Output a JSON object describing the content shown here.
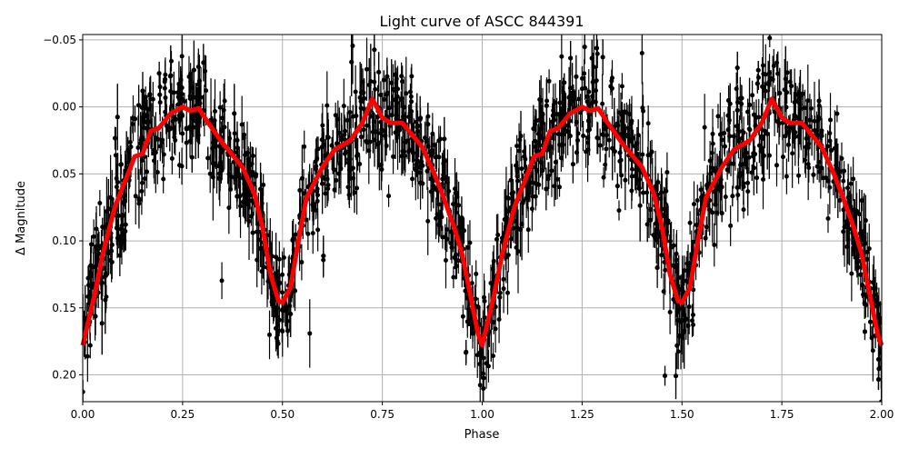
{
  "chart_data": {
    "type": "scatter",
    "title": "Light curve of ASCC 844391",
    "xlabel": "Phase",
    "ylabel": "Δ Magnitude",
    "xlim": [
      0,
      2
    ],
    "ylim": [
      0.22,
      -0.054
    ],
    "y_inverted": true,
    "grid": true,
    "xticks": [
      "0.00",
      "0.25",
      "0.50",
      "0.75",
      "1.00",
      "1.25",
      "1.50",
      "1.75",
      "2.00"
    ],
    "yticks": [
      "−0.05",
      "0.00",
      "0.05",
      "0.10",
      "0.15",
      "0.20"
    ],
    "colors": {
      "data": "#000000",
      "model": "#ff0000",
      "grid": "#b0b0b0"
    },
    "series": [
      {
        "kind": "errorbar-points",
        "description_visible": false
      },
      {
        "kind": "line",
        "x": [
          0,
          0.03,
          0.05,
          0.08,
          0.1,
          0.12,
          0.13,
          0.15,
          0.17,
          0.19,
          0.22,
          0.25,
          0.27,
          0.29,
          0.31,
          0.35,
          0.4,
          0.43,
          0.45,
          0.47,
          0.49,
          0.5,
          0.52,
          0.54,
          0.56,
          0.6,
          0.63,
          0.67,
          0.7,
          0.725,
          0.75,
          0.77,
          0.8,
          0.85,
          0.88,
          0.9,
          0.93,
          0.95,
          0.97,
          0.99,
          1.0,
          1.03,
          1.05,
          1.08,
          1.1,
          1.12,
          1.13,
          1.15,
          1.17,
          1.19,
          1.22,
          1.25,
          1.27,
          1.29,
          1.31,
          1.35,
          1.4,
          1.43,
          1.45,
          1.47,
          1.49,
          1.5,
          1.52,
          1.54,
          1.56,
          1.6,
          1.63,
          1.67,
          1.7,
          1.725,
          1.75,
          1.77,
          1.8,
          1.85,
          1.88,
          1.9,
          1.93,
          1.95,
          1.97,
          1.99,
          2.0
        ],
        "y": [
          0.178,
          0.14,
          0.11,
          0.075,
          0.06,
          0.045,
          0.037,
          0.035,
          0.018,
          0.016,
          0.005,
          0.0,
          0.003,
          0.001,
          0.01,
          0.027,
          0.045,
          0.065,
          0.09,
          0.125,
          0.145,
          0.146,
          0.135,
          0.1,
          0.068,
          0.045,
          0.032,
          0.025,
          0.012,
          -0.006,
          0.008,
          0.012,
          0.012,
          0.03,
          0.05,
          0.065,
          0.09,
          0.11,
          0.14,
          0.17,
          0.178,
          0.14,
          0.11,
          0.075,
          0.06,
          0.045,
          0.037,
          0.035,
          0.018,
          0.016,
          0.005,
          0.0,
          0.003,
          0.001,
          0.01,
          0.027,
          0.045,
          0.065,
          0.09,
          0.125,
          0.145,
          0.146,
          0.135,
          0.1,
          0.068,
          0.045,
          0.032,
          0.025,
          0.012,
          -0.006,
          0.008,
          0.012,
          0.012,
          0.03,
          0.05,
          0.065,
          0.09,
          0.11,
          0.14,
          0.17,
          0.178
        ]
      }
    ]
  }
}
